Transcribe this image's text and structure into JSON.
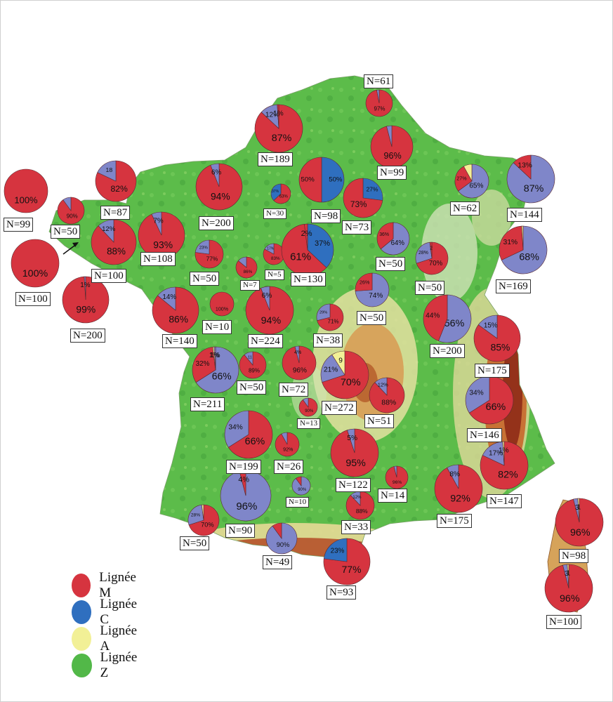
{
  "colors": {
    "M": "#d6343f",
    "C_blue": "#2f6fbf",
    "C_violet": "#7f86c9",
    "A": "#f2f096",
    "Z": "#52b848"
  },
  "legend": [
    {
      "key": "M",
      "label": "Lignée M",
      "color": "#d6343f"
    },
    {
      "key": "C",
      "label": "Lignée C",
      "color": "#2f6fbf"
    },
    {
      "key": "A",
      "label": "Lignée A",
      "color": "#f2f096"
    },
    {
      "key": "Z",
      "label": "Lignée Z",
      "color": "#52b848"
    }
  ],
  "sites": [
    {
      "n": "N=61",
      "slices": [
        {
          "v": 97,
          "c": "M",
          "t": "97%"
        },
        {
          "v": 3,
          "c": "C_violet",
          "t": ""
        }
      ]
    },
    {
      "n": "N=189",
      "slices": [
        {
          "v": 87,
          "c": "M",
          "t": "87%"
        },
        {
          "v": 12,
          "c": "C_violet",
          "t": "12%"
        },
        {
          "v": 1,
          "c": "M",
          "t": "1%"
        }
      ]
    },
    {
      "n": "N=99",
      "slices": [
        {
          "v": 96,
          "c": "M",
          "t": "96%"
        },
        {
          "v": 4,
          "c": "C_violet",
          "t": ""
        }
      ]
    },
    {
      "n": "N=87",
      "slices": [
        {
          "v": 82,
          "c": "M",
          "t": "82%"
        },
        {
          "v": 18,
          "c": "C_violet",
          "t": "18"
        }
      ]
    },
    {
      "n": "N=99",
      "slices": [
        {
          "v": 100,
          "c": "M",
          "t": "100%"
        }
      ]
    },
    {
      "n": "N=50",
      "slices": [
        {
          "v": 90,
          "c": "M",
          "t": "90%"
        },
        {
          "v": 10,
          "c": "C_violet",
          "t": ""
        }
      ]
    },
    {
      "n": "N=200",
      "slices": [
        {
          "v": 94,
          "c": "M",
          "t": "94%"
        },
        {
          "v": 6,
          "c": "C_violet",
          "t": "6%"
        }
      ]
    },
    {
      "n": "N=30",
      "slices": [
        {
          "v": 63,
          "c": "M",
          "t": "63%"
        },
        {
          "v": 37,
          "c": "C_blue",
          "t": "37%"
        }
      ]
    },
    {
      "n": "N=98",
      "slices": [
        {
          "v": 50,
          "c": "C_blue",
          "t": "50%"
        },
        {
          "v": 50,
          "c": "M",
          "t": "50%"
        }
      ]
    },
    {
      "n": "N=73",
      "slices": [
        {
          "v": 27,
          "c": "C_blue",
          "t": "27%"
        },
        {
          "v": 73,
          "c": "M",
          "t": "73%"
        }
      ]
    },
    {
      "n": "N=62",
      "slices": [
        {
          "v": 65,
          "c": "C_violet",
          "t": "65%"
        },
        {
          "v": 27,
          "c": "M",
          "t": "27%"
        },
        {
          "v": 8,
          "c": "A",
          "t": ""
        }
      ]
    },
    {
      "n": "N=144",
      "slices": [
        {
          "v": 87,
          "c": "C_violet",
          "t": "87%"
        },
        {
          "v": 13,
          "c": "M",
          "t": "13%"
        }
      ]
    },
    {
      "n": "N=100",
      "slices": [
        {
          "v": 88,
          "c": "M",
          "t": "88%"
        },
        {
          "v": 12,
          "c": "C_violet",
          "t": "12%"
        }
      ]
    },
    {
      "n": "N=108",
      "slices": [
        {
          "v": 93,
          "c": "M",
          "t": "93%"
        },
        {
          "v": 7,
          "c": "C_violet",
          "t": "7%"
        }
      ]
    },
    {
      "n": "N=50",
      "slices": [
        {
          "v": 77,
          "c": "M",
          "t": "77%"
        },
        {
          "v": 23,
          "c": "C_violet",
          "t": "23%"
        }
      ]
    },
    {
      "n": "N=7",
      "slices": [
        {
          "v": 86,
          "c": "M",
          "t": "86%"
        },
        {
          "v": 14,
          "c": "C_violet",
          "t": ""
        }
      ]
    },
    {
      "n": "N=5",
      "slices": [
        {
          "v": 83,
          "c": "M",
          "t": "83%"
        },
        {
          "v": 17,
          "c": "C_violet",
          "t": "17%"
        }
      ]
    },
    {
      "n": "N=130",
      "slices": [
        {
          "v": 37,
          "c": "C_blue",
          "t": "37%"
        },
        {
          "v": 61,
          "c": "M",
          "t": "61%"
        },
        {
          "v": 2,
          "c": "M",
          "t": "2%"
        }
      ]
    },
    {
      "n": "N=50",
      "slices": [
        {
          "v": 64,
          "c": "C_violet",
          "t": "64%"
        },
        {
          "v": 36,
          "c": "M",
          "t": "36%"
        }
      ]
    },
    {
      "n": "N=50",
      "slices": [
        {
          "v": 70,
          "c": "M",
          "t": "70%"
        },
        {
          "v": 28,
          "c": "C_violet",
          "t": "28%"
        },
        {
          "v": 2,
          "c": "M",
          "t": "2"
        }
      ]
    },
    {
      "n": "N=169",
      "slices": [
        {
          "v": 68,
          "c": "C_violet",
          "t": "68%"
        },
        {
          "v": 31,
          "c": "M",
          "t": "31%"
        },
        {
          "v": 1,
          "c": "A",
          "t": ""
        }
      ]
    },
    {
      "n": "N=100",
      "slices": [
        {
          "v": 100,
          "c": "M",
          "t": "100%"
        }
      ]
    },
    {
      "n": "N=200",
      "slices": [
        {
          "v": 99,
          "c": "M",
          "t": "99%"
        },
        {
          "v": 1,
          "c": "C_violet",
          "t": "1%"
        }
      ]
    },
    {
      "n": "N=140",
      "slices": [
        {
          "v": 86,
          "c": "M",
          "t": "86%"
        },
        {
          "v": 14,
          "c": "C_violet",
          "t": "14%"
        }
      ]
    },
    {
      "n": "N=10",
      "slices": [
        {
          "v": 100,
          "c": "M",
          "t": "100%"
        }
      ]
    },
    {
      "n": "N=224",
      "slices": [
        {
          "v": 94,
          "c": "M",
          "t": "94%"
        },
        {
          "v": 6,
          "c": "C_violet",
          "t": "6%"
        }
      ]
    },
    {
      "n": "N=38",
      "slices": [
        {
          "v": 71,
          "c": "M",
          "t": "71%"
        },
        {
          "v": 29,
          "c": "C_violet",
          "t": "29%"
        }
      ]
    },
    {
      "n": "N=50",
      "slices": [
        {
          "v": 74,
          "c": "C_violet",
          "t": "74%"
        },
        {
          "v": 26,
          "c": "M",
          "t": "26%"
        }
      ]
    },
    {
      "n": "N=200",
      "slices": [
        {
          "v": 56,
          "c": "C_violet",
          "t": "56%"
        },
        {
          "v": 44,
          "c": "M",
          "t": "44%"
        }
      ]
    },
    {
      "n": "N=175",
      "slices": [
        {
          "v": 85,
          "c": "M",
          "t": "85%"
        },
        {
          "v": 15,
          "c": "C_violet",
          "t": "15%"
        }
      ]
    },
    {
      "n": "N=211",
      "slices": [
        {
          "v": 66,
          "c": "C_violet",
          "t": "66%"
        },
        {
          "v": 32,
          "c": "M",
          "t": "32%"
        },
        {
          "v": 1,
          "c": "A",
          "t": "1%"
        },
        {
          "v": 1,
          "c": "C_violet",
          "t": "1%"
        }
      ]
    },
    {
      "n": "N=50",
      "slices": [
        {
          "v": 89,
          "c": "M",
          "t": "89%"
        },
        {
          "v": 11,
          "c": "C_violet",
          "t": "11"
        }
      ]
    },
    {
      "n": "N=72",
      "slices": [
        {
          "v": 96,
          "c": "M",
          "t": "96%"
        },
        {
          "v": 4,
          "c": "C_violet",
          "t": "4%"
        }
      ]
    },
    {
      "n": "N=272",
      "slices": [
        {
          "v": 70,
          "c": "M",
          "t": "70%"
        },
        {
          "v": 21,
          "c": "C_violet",
          "t": "21%"
        },
        {
          "v": 9,
          "c": "A",
          "t": "9"
        }
      ]
    },
    {
      "n": "N=51",
      "slices": [
        {
          "v": 88,
          "c": "M",
          "t": "88%"
        },
        {
          "v": 12,
          "c": "C_violet",
          "t": "12%"
        }
      ]
    },
    {
      "n": "N=146",
      "slices": [
        {
          "v": 66,
          "c": "M",
          "t": "66%"
        },
        {
          "v": 34,
          "c": "C_violet",
          "t": "34%"
        }
      ]
    },
    {
      "n": "N=13",
      "slices": [
        {
          "v": 90,
          "c": "M",
          "t": "90%"
        },
        {
          "v": 10,
          "c": "C_violet",
          "t": ""
        }
      ]
    },
    {
      "n": "N=199",
      "slices": [
        {
          "v": 66,
          "c": "M",
          "t": "66%"
        },
        {
          "v": 34,
          "c": "C_violet",
          "t": "34%"
        }
      ]
    },
    {
      "n": "N=26",
      "slices": [
        {
          "v": 92,
          "c": "M",
          "t": "92%"
        },
        {
          "v": 8,
          "c": "C_violet",
          "t": ""
        }
      ]
    },
    {
      "n": "N=122",
      "slices": [
        {
          "v": 95,
          "c": "M",
          "t": "95%"
        },
        {
          "v": 5,
          "c": "C_violet",
          "t": "5%"
        }
      ]
    },
    {
      "n": "N=147",
      "slices": [
        {
          "v": 82,
          "c": "M",
          "t": "82%"
        },
        {
          "v": 17,
          "c": "C_violet",
          "t": "17%"
        },
        {
          "v": 1,
          "c": "A",
          "t": "1%"
        }
      ]
    },
    {
      "n": "N=14",
      "slices": [
        {
          "v": 96,
          "c": "M",
          "t": "96%"
        },
        {
          "v": 4,
          "c": "C_violet",
          "t": ""
        }
      ]
    },
    {
      "n": "N=175",
      "slices": [
        {
          "v": 92,
          "c": "M",
          "t": "92%"
        },
        {
          "v": 8,
          "c": "C_violet",
          "t": "8%"
        }
      ]
    },
    {
      "n": "N=90",
      "slices": [
        {
          "v": 96,
          "c": "C_violet",
          "t": "96%"
        },
        {
          "v": 4,
          "c": "M",
          "t": "4%"
        }
      ]
    },
    {
      "n": "N=10",
      "slices": [
        {
          "v": 90,
          "c": "C_violet",
          "t": "90%"
        },
        {
          "v": 10,
          "c": "M",
          "t": ""
        }
      ]
    },
    {
      "n": "N=33",
      "slices": [
        {
          "v": 88,
          "c": "M",
          "t": "88%"
        },
        {
          "v": 12,
          "c": "C_violet",
          "t": "12%"
        }
      ]
    },
    {
      "n": "N=50",
      "slices": [
        {
          "v": 70,
          "c": "M",
          "t": "70%"
        },
        {
          "v": 28,
          "c": "C_violet",
          "t": "28%"
        },
        {
          "v": 2,
          "c": "A",
          "t": ""
        }
      ]
    },
    {
      "n": "N=49",
      "slices": [
        {
          "v": 90,
          "c": "C_violet",
          "t": "90%"
        },
        {
          "v": 10,
          "c": "M",
          "t": ""
        }
      ]
    },
    {
      "n": "N=93",
      "slices": [
        {
          "v": 77,
          "c": "M",
          "t": "77%"
        },
        {
          "v": 23,
          "c": "C_blue",
          "t": "23%"
        }
      ]
    },
    {
      "n": "N=98",
      "slices": [
        {
          "v": 96,
          "c": "M",
          "t": "96%"
        },
        {
          "v": 3,
          "c": "C_violet",
          "t": "3"
        },
        {
          "v": 1,
          "c": "A",
          "t": "1"
        }
      ]
    },
    {
      "n": "N=100",
      "slices": [
        {
          "v": 96,
          "c": "M",
          "t": "96%"
        },
        {
          "v": 3,
          "c": "C_violet",
          "t": "3"
        },
        {
          "v": 1,
          "c": "A",
          "t": "1"
        }
      ]
    }
  ]
}
